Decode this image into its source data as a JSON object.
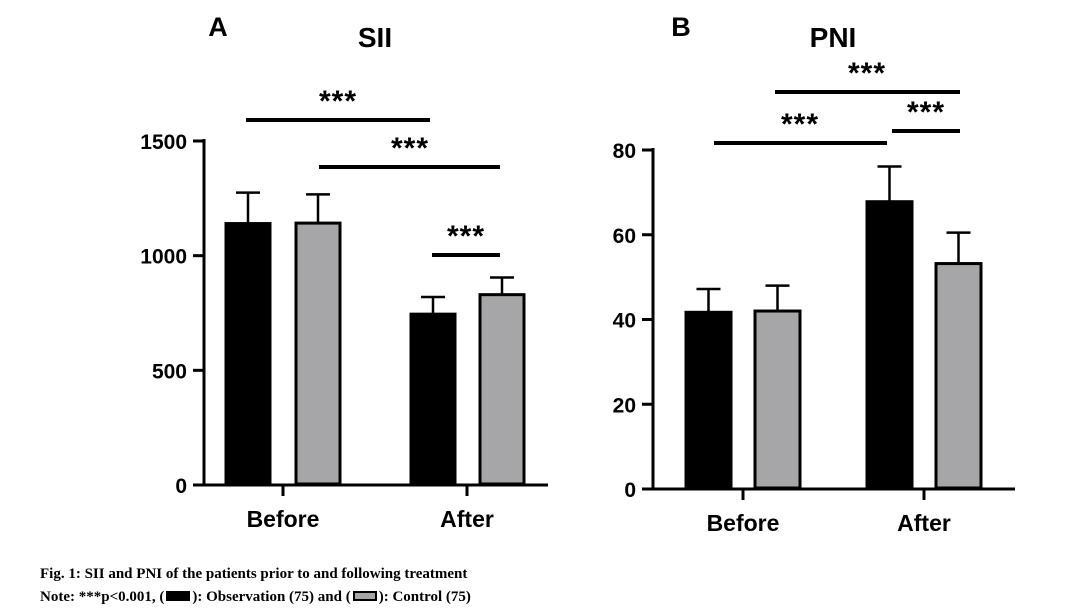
{
  "colors": {
    "observation": "#000000",
    "control": "#a6a6a8",
    "axis": "#000000"
  },
  "chart_data": [
    {
      "panel": "A",
      "type": "bar",
      "title": "SII",
      "categories": [
        "Before",
        "After"
      ],
      "series": [
        {
          "name": "Observation (75)",
          "values": [
            1140,
            745
          ],
          "errors": [
            135,
            75
          ]
        },
        {
          "name": "Control (75)",
          "values": [
            1142,
            830
          ],
          "errors": [
            125,
            75
          ]
        }
      ],
      "yticks": [
        "0",
        "500",
        "1000",
        "1500"
      ],
      "ylim": [
        0,
        1500
      ],
      "significance": [
        {
          "label": "***",
          "from": "Before-Observation",
          "to": "After-Observation"
        },
        {
          "label": "***",
          "from": "Before-Control",
          "to": "After-Control"
        },
        {
          "label": "***",
          "from": "After-Observation",
          "to": "After-Control"
        }
      ]
    },
    {
      "panel": "B",
      "type": "bar",
      "title": "PNI",
      "categories": [
        "Before",
        "After"
      ],
      "series": [
        {
          "name": "Observation (75)",
          "values": [
            41.7,
            67.8
          ],
          "errors": [
            5.5,
            8.3
          ]
        },
        {
          "name": "Control (75)",
          "values": [
            42,
            53.2
          ],
          "errors": [
            6,
            7.3
          ]
        }
      ],
      "yticks": [
        "0",
        "20",
        "40",
        "60",
        "80"
      ],
      "ylim": [
        0,
        80
      ],
      "significance": [
        {
          "label": "***",
          "from": "Before-Observation",
          "to": "After-Observation"
        },
        {
          "label": "***",
          "from": "Before-Control",
          "to": "After-Control"
        },
        {
          "label": "***",
          "from": "After-Observation",
          "to": "After-Control"
        }
      ]
    }
  ],
  "caption": {
    "line1": "Fig. 1: SII and PNI of the patients prior to and following treatment",
    "line2_prefix": "Note: ***p<0.001, (",
    "line2_mid": "): Observation (75) and (",
    "line2_suffix": "): Control (75)"
  }
}
